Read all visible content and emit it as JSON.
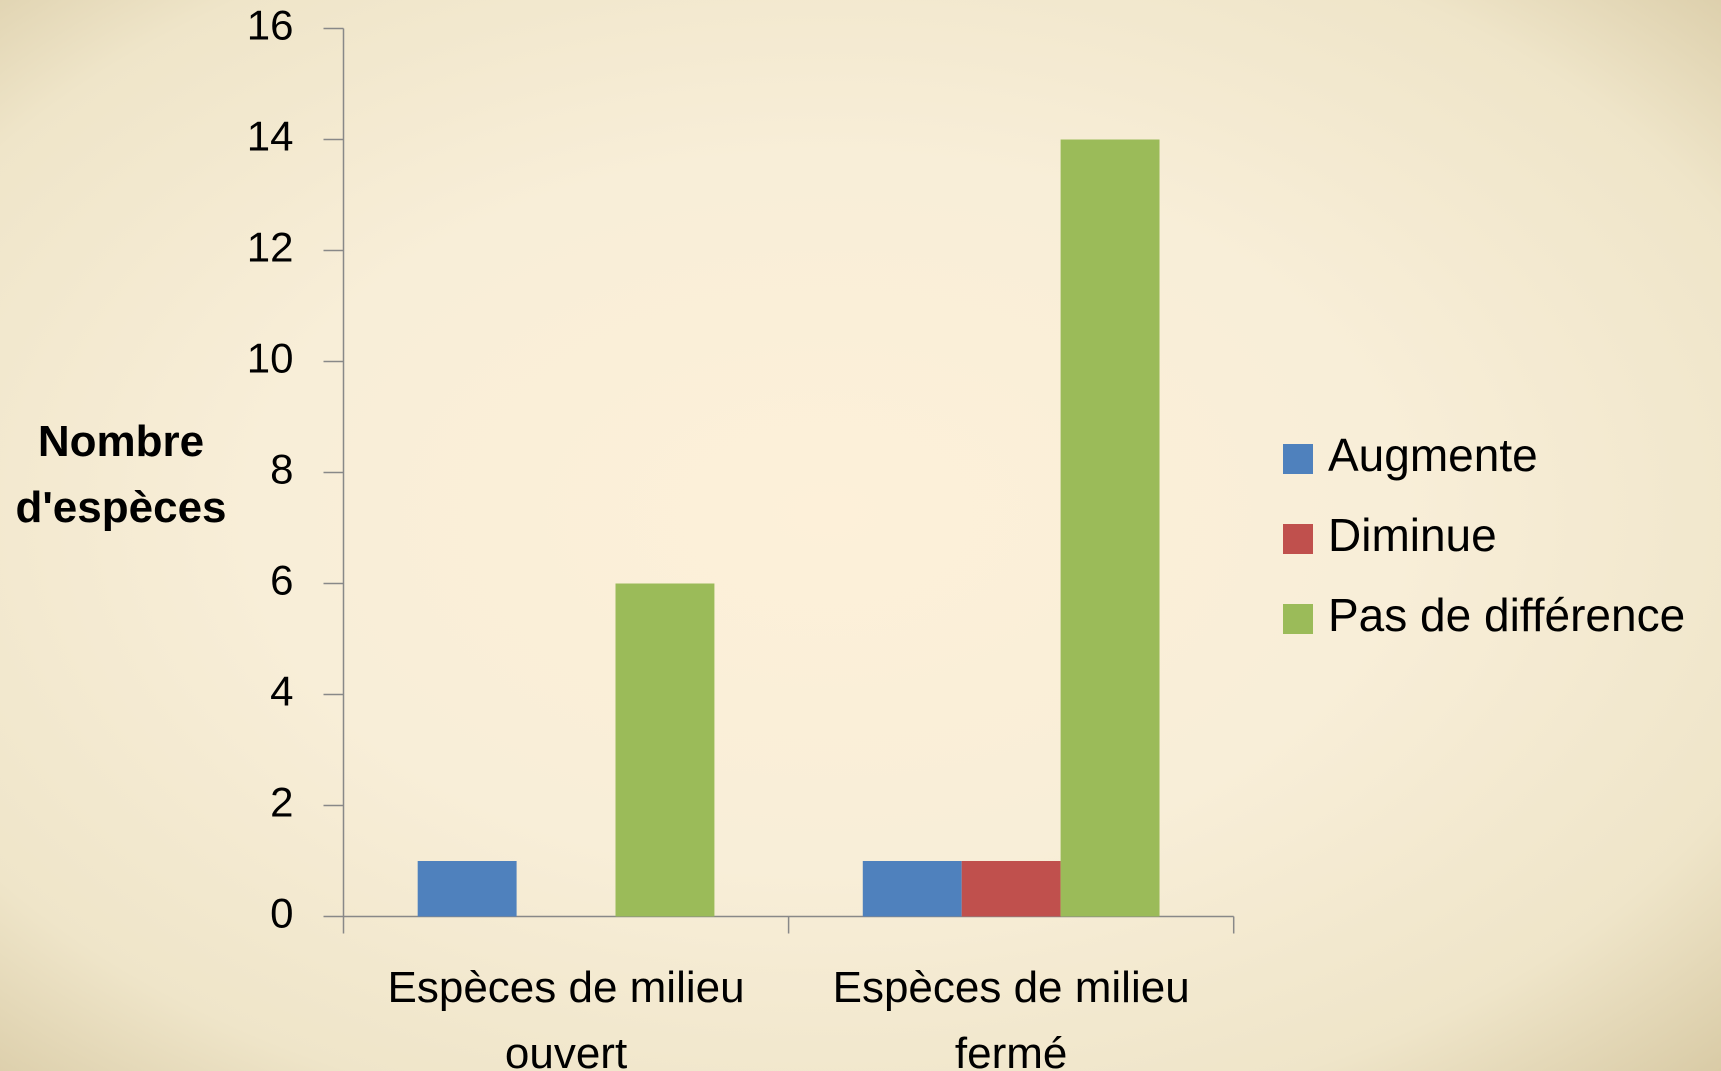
{
  "chart_data": {
    "type": "bar",
    "y_label": "Nombre d'espèces",
    "categories": [
      "Espèces de milieu ouvert",
      "Espèces de milieu fermé"
    ],
    "series": [
      {
        "name": "Augmente",
        "color": "#4f81bd",
        "values": [
          1,
          1
        ]
      },
      {
        "name": "Diminue",
        "color": "#c0504d",
        "values": [
          0,
          1
        ]
      },
      {
        "name": "Pas de différence",
        "color": "#9bbb59",
        "values": [
          6,
          14
        ]
      }
    ],
    "ylim": [
      0,
      16
    ],
    "yticks": [
      0,
      2,
      4,
      6,
      8,
      10,
      12,
      14,
      16
    ],
    "grid": false,
    "legend": "right"
  }
}
